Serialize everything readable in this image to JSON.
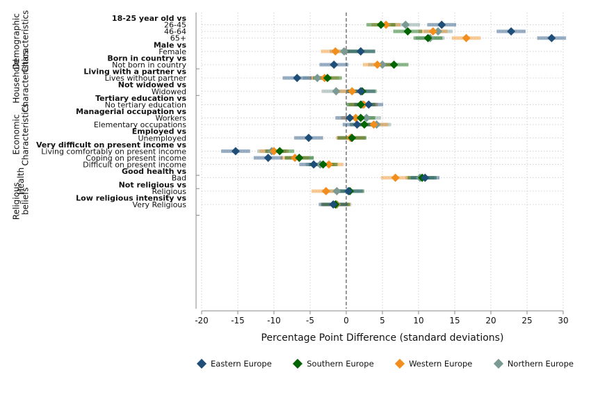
{
  "chart_data": {
    "type": "scatter",
    "xlabel": "Percentage Point Difference (standard deviations)",
    "xlim": [
      -20,
      30
    ],
    "xticks": [
      "-20",
      "-15",
      "-10",
      "-5",
      "0",
      "5",
      "10",
      "15",
      "20",
      "25",
      "30"
    ],
    "grid": true,
    "legend_position": "bottom",
    "series": [
      {
        "name": "Eastern Europe",
        "color": "#1f4e79"
      },
      {
        "name": "Southern Europe",
        "color": "#006400"
      },
      {
        "name": "Western Europe",
        "color": "#f28e1c"
      },
      {
        "name": "Northern Europe",
        "color": "#7a9a93"
      }
    ],
    "groups": [
      {
        "label": "Demographic Characteristics",
        "lines": [
          "Demographic",
          "Characteristics"
        ],
        "from": 0,
        "to": 7
      },
      {
        "label": "Household Characteristics",
        "lines": [
          "Household",
          "Characteristics"
        ],
        "from": 8,
        "to": 11
      },
      {
        "label": "Economic Characteristics",
        "lines": [
          "Economic",
          "Characteristics"
        ],
        "from": 12,
        "to": 23
      },
      {
        "label": "Health",
        "lines": [
          "Health"
        ],
        "from": 24,
        "to": 25
      },
      {
        "label": "Religious beliefs",
        "lines": [
          "Religious",
          "beliefs"
        ],
        "from": 26,
        "to": 29
      }
    ],
    "rows": [
      {
        "label": "18-25 year old vs",
        "bold": true
      },
      {
        "label": "26-45",
        "values": [
          13.2,
          4.8,
          5.5,
          8.2
        ]
      },
      {
        "label": "46-64",
        "values": [
          22.8,
          8.5,
          12.0,
          12.7
        ]
      },
      {
        "label": "65+",
        "values": [
          28.4,
          11.3,
          16.6,
          11.6
        ]
      },
      {
        "label": "Male vs",
        "bold": true
      },
      {
        "label": "Female",
        "values": [
          2.0,
          2.0,
          -1.5,
          -0.3
        ]
      },
      {
        "label": "Born in country vs",
        "bold": true
      },
      {
        "label": "Not born in country",
        "values": [
          -1.7,
          6.6,
          4.3,
          5.0
        ]
      },
      {
        "label": "Living with a partner vs",
        "bold": true
      },
      {
        "label": "Lives without partner",
        "values": [
          -6.8,
          -2.6,
          -3.0,
          -4.0
        ]
      },
      {
        "label": "Not widowed vs",
        "bold": true
      },
      {
        "label": "Widowed",
        "values": [
          2.0,
          2.2,
          0.8,
          -1.4
        ]
      },
      {
        "label": "Tertiary education vs",
        "bold": true
      },
      {
        "label": "No tertiary education",
        "values": [
          3.1,
          2.0,
          2.4,
          2.2
        ]
      },
      {
        "label": "Managerial occupation vs",
        "bold": true
      },
      {
        "label": "Workers",
        "values": [
          0.5,
          2.0,
          1.3,
          2.8
        ]
      },
      {
        "label": "Elementary occupations",
        "values": [
          1.5,
          2.5,
          3.8,
          4.2
        ]
      },
      {
        "label": "Employed vs",
        "bold": true
      },
      {
        "label": "Unemployed",
        "values": [
          -5.2,
          0.8,
          0.6,
          0.7
        ]
      },
      {
        "label": "Very difficult on present income vs",
        "bold": true
      },
      {
        "label": "Living comfortably on present income",
        "values": [
          -15.3,
          -9.2,
          -10.0,
          -10.3
        ]
      },
      {
        "label": "Coping on present income",
        "values": [
          -10.8,
          -6.5,
          -7.1,
          -6.5
        ]
      },
      {
        "label": "Difficult on present income",
        "values": [
          -4.5,
          -3.2,
          -2.4,
          -3.6
        ]
      },
      {
        "label": "Good health vs",
        "bold": true
      },
      {
        "label": "Bad",
        "values": [
          10.9,
          10.5,
          6.8,
          10.2
        ]
      },
      {
        "label": "Not religious vs",
        "bold": true
      },
      {
        "label": "Religious",
        "values": [
          0.3,
          0.5,
          -2.8,
          -1.3
        ]
      },
      {
        "label": "Low religious intensity vs",
        "bold": true
      },
      {
        "label": "Very Religious",
        "values": [
          -1.8,
          -1.5,
          -1.4,
          -1.3
        ]
      }
    ]
  }
}
